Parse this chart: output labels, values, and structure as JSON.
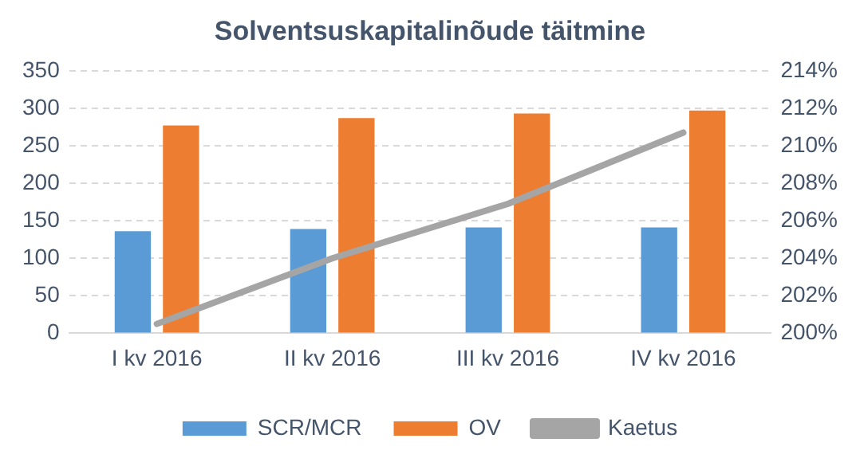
{
  "chart_data": {
    "type": "bar",
    "title": "Solventsuskapitalinõude täitmine",
    "categories": [
      "I kv 2016",
      "II kv 2016",
      "III kv 2016",
      "IV kv 2016"
    ],
    "series": [
      {
        "name": "SCR/MCR",
        "color": "#5b9bd5",
        "values": [
          136,
          139,
          141,
          141
        ]
      },
      {
        "name": "OV",
        "color": "#ed7d31",
        "values": [
          277,
          287,
          293,
          297
        ]
      },
      {
        "name": "Kaetus",
        "type": "line",
        "axis": "y2",
        "color": "#a5a5a5",
        "values": [
          200.5,
          204.0,
          206.9,
          210.7
        ]
      }
    ],
    "ylim": [
      0,
      350
    ],
    "yticks": [
      0,
      50,
      100,
      150,
      200,
      250,
      300,
      350
    ],
    "y2lim": [
      200,
      214
    ],
    "y2ticks": [
      {
        "value": 200,
        "label": "200%"
      },
      {
        "value": 202,
        "label": "202%"
      },
      {
        "value": 204,
        "label": "204%"
      },
      {
        "value": 206,
        "label": "206%"
      },
      {
        "value": 208,
        "label": "208%"
      },
      {
        "value": 210,
        "label": "210%"
      },
      {
        "value": 212,
        "label": "212%"
      },
      {
        "value": 214,
        "label": "214%"
      }
    ],
    "grid": "y",
    "legend": "bottom"
  }
}
